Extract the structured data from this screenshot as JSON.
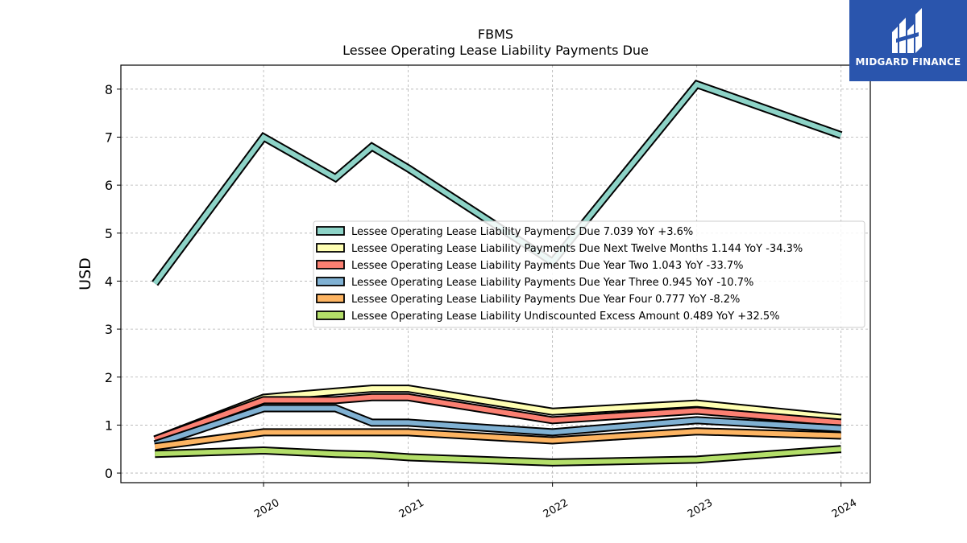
{
  "chart_data": {
    "type": "line",
    "title": "FBMS",
    "subtitle": "Lessee Operating Lease Liability Payments Due",
    "ylabel": "USD",
    "xlabel": "",
    "ylim": [
      -0.2,
      8.5
    ],
    "xlim": [
      "2019-01-05",
      "2024-03-15"
    ],
    "yticks": [
      0,
      1,
      2,
      3,
      4,
      5,
      6,
      7,
      8
    ],
    "xticks": [
      "2020",
      "2021",
      "2022",
      "2023",
      "2024"
    ],
    "grid": true,
    "legend_position": "center-right",
    "x": [
      "2019-04-01",
      "2020-01-01",
      "2020-07-01",
      "2020-10-01",
      "2021-01-01",
      "2022-01-01",
      "2023-01-01",
      "2024-01-01"
    ],
    "series": [
      {
        "name": "Lessee Operating Lease Liability Payments Due",
        "legend": "Lessee Operating Lease Liability Payments Due  7.039 YoY +3.6%",
        "color": "#8dd3c7",
        "values": [
          3.95,
          7.0,
          6.15,
          6.8,
          6.35,
          4.4,
          8.1,
          7.04
        ]
      },
      {
        "name": "Lessee Operating Lease Liability Payments Due Next Twelve Months",
        "legend": "Lessee Operating Lease Liability Payments Due Next Twelve Months  1.144 YoY -34.3%",
        "color": "#ffffb3",
        "values": [
          0.7,
          1.57,
          1.7,
          1.76,
          1.76,
          1.28,
          1.45,
          1.15
        ]
      },
      {
        "name": "Lessee Operating Lease Liability Payments Due Year Two",
        "legend": "Lessee Operating Lease Liability Payments Due Year Two  1.043 YoY -33.7%",
        "color": "#fb8072",
        "values": [
          0.7,
          1.52,
          1.52,
          1.58,
          1.58,
          1.1,
          1.3,
          1.05
        ]
      },
      {
        "name": "Lessee Operating Lease Liability Payments Due Year Three",
        "legend": "Lessee Operating Lease Liability Payments Due Year Three  0.945 YoY -10.7%",
        "color": "#80b1d3",
        "values": [
          0.6,
          1.35,
          1.35,
          1.05,
          1.05,
          0.85,
          1.1,
          0.93
        ]
      },
      {
        "name": "Lessee Operating Lease Liability Payments Due Year Four",
        "legend": "Lessee Operating Lease Liability Payments Due Year Four  0.777 YoY -8.2%",
        "color": "#fdb462",
        "values": [
          0.55,
          0.85,
          0.85,
          0.85,
          0.85,
          0.68,
          0.87,
          0.78
        ]
      },
      {
        "name": "Lessee Operating Lease Liability Undiscounted Excess Amount",
        "legend": "Lessee Operating Lease Liability Undiscounted Excess Amount  0.489 YoY +32.5%",
        "color": "#b3de69",
        "values": [
          0.4,
          0.47,
          0.4,
          0.38,
          0.33,
          0.22,
          0.28,
          0.5
        ]
      }
    ]
  },
  "logo": {
    "text": "MIDGARD FINANCE",
    "color": "#2a55ad"
  }
}
